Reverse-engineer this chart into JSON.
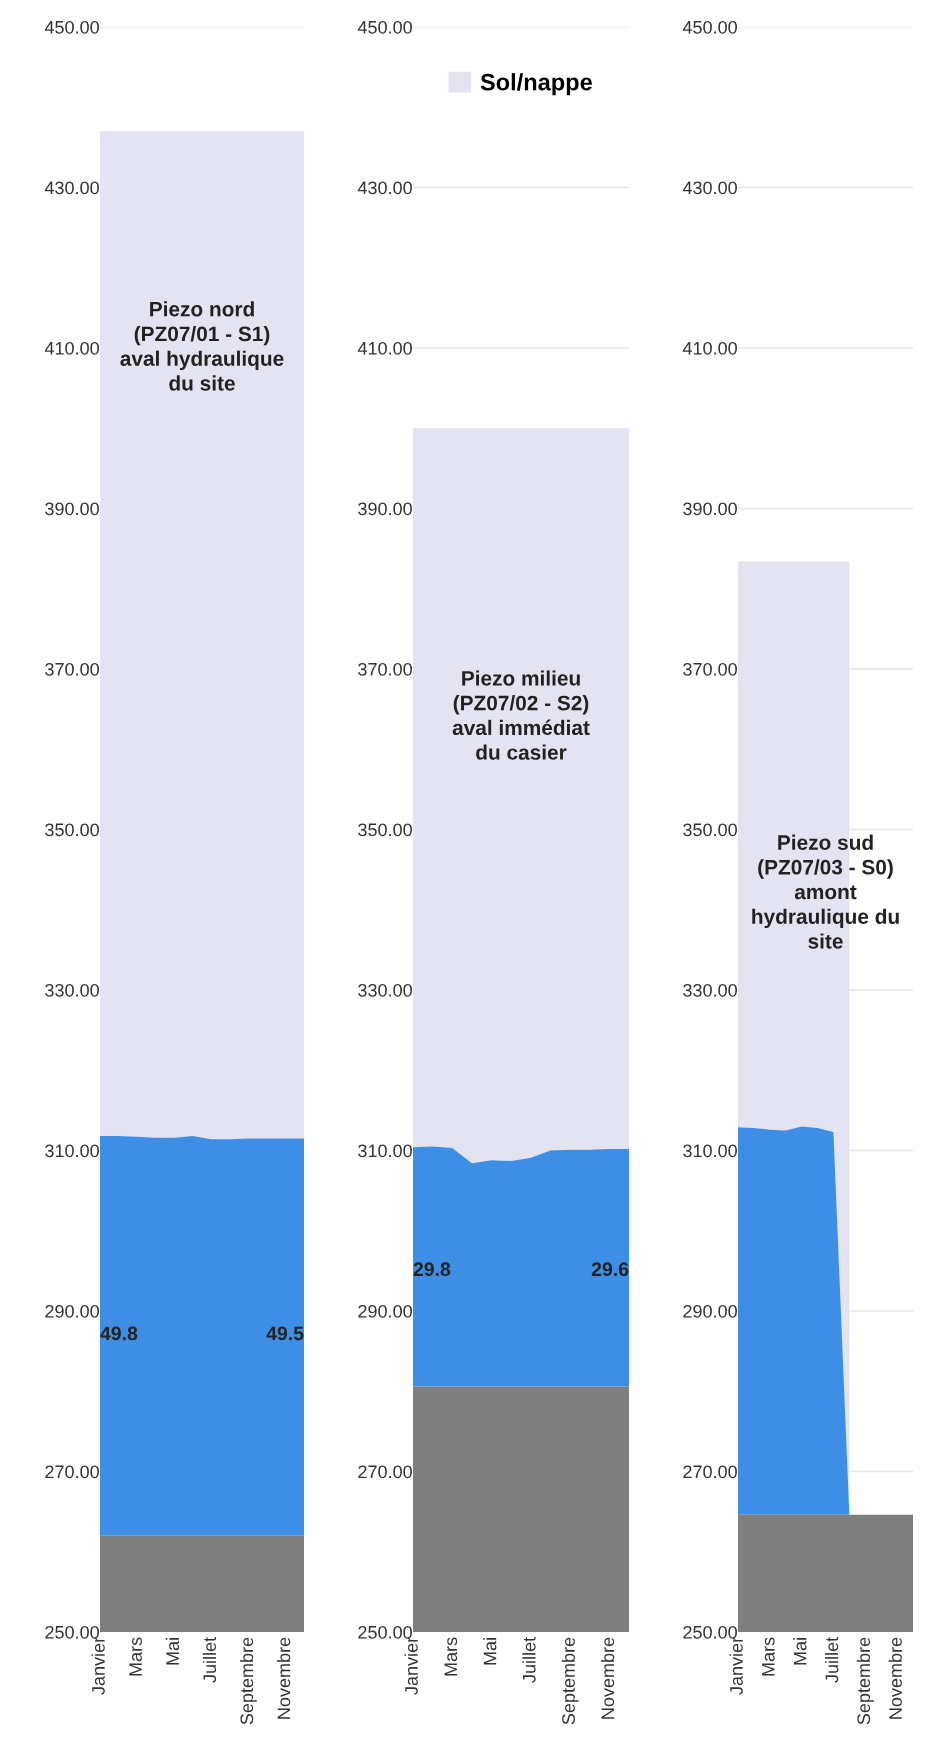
{
  "chart_data": [
    {
      "type": "area",
      "categories": [
        "Janvier",
        null,
        "Mars",
        null,
        "Mai",
        null,
        "Juillet",
        null,
        "Septembre",
        null,
        "Novembre",
        null
      ],
      "series": [
        {
          "color": "#7f7f7f",
          "values": [
            262,
            262,
            262,
            262,
            262,
            262,
            262,
            262,
            262,
            262,
            262,
            262
          ]
        },
        {
          "color": "#3d8ee4",
          "values": [
            311.8,
            311.8,
            311.7,
            311.6,
            311.6,
            311.8,
            311.4,
            311.4,
            311.5,
            311.5,
            311.5,
            311.5
          ]
        },
        {
          "color": "#e4e3f1",
          "values": [
            437,
            437,
            437,
            437,
            437,
            437,
            437,
            437,
            437,
            437,
            437,
            437
          ]
        }
      ],
      "ylim": [
        250,
        450
      ],
      "yticks": [
        {
          "value": 250,
          "label": "250.00"
        },
        {
          "value": 270,
          "label": "270.00"
        },
        {
          "value": 290,
          "label": "290.00"
        },
        {
          "value": 310,
          "label": "310.00"
        },
        {
          "value": 330,
          "label": "330.00"
        },
        {
          "value": 350,
          "label": "350.00"
        },
        {
          "value": 370,
          "label": "370.00"
        },
        {
          "value": 390,
          "label": "390.00"
        },
        {
          "value": 410,
          "label": "410.00"
        },
        {
          "value": 430,
          "label": "430.00"
        },
        {
          "value": 450,
          "label": "450.00"
        }
      ],
      "grid": "y",
      "legend": false,
      "annotations": [
        "Piezo nord\n(PZ07/01 - S1)\naval hydraulique\ndu site",
        "49.8",
        "49.5"
      ]
    },
    {
      "type": "area",
      "categories": [
        "Janvier",
        null,
        "Mars",
        null,
        "Mai",
        null,
        "Juillet",
        null,
        "Septembre",
        null,
        "Novembre",
        null
      ],
      "series": [
        {
          "color": "#7f7f7f",
          "values": [
            280.6,
            280.6,
            280.6,
            280.6,
            280.6,
            280.6,
            280.6,
            280.6,
            280.6,
            280.6,
            280.6,
            280.6
          ]
        },
        {
          "color": "#3d8ee4",
          "values": [
            310.4,
            310.5,
            310.3,
            308.4,
            308.8,
            308.7,
            309.1,
            310.0,
            310.1,
            310.1,
            310.2,
            310.2
          ]
        },
        {
          "name": "Sol/nappe",
          "color": "#e4e3f1",
          "values": [
            400,
            400,
            400,
            400,
            400,
            400,
            400,
            400,
            400,
            400,
            400,
            400
          ]
        }
      ],
      "ylim": [
        250,
        450
      ],
      "yticks": [
        {
          "value": 250,
          "label": "250.00"
        },
        {
          "value": 270,
          "label": "270.00"
        },
        {
          "value": 290,
          "label": "290.00"
        },
        {
          "value": 310,
          "label": "310.00"
        },
        {
          "value": 330,
          "label": "330.00"
        },
        {
          "value": 350,
          "label": "350.00"
        },
        {
          "value": 370,
          "label": "370.00"
        },
        {
          "value": 390,
          "label": "390.00"
        },
        {
          "value": 410,
          "label": "410.00"
        },
        {
          "value": 430,
          "label": "430.00"
        },
        {
          "value": 450,
          "label": "450.00"
        }
      ],
      "grid": "y",
      "legend": "top",
      "annotations": [
        "Piezo milieu\n(PZ07/02 - S2)\naval immédiat\ndu casier",
        "29.8",
        "29.6"
      ]
    },
    {
      "type": "area",
      "categories": [
        "Janvier",
        null,
        "Mars",
        null,
        "Mai",
        null,
        "Juillet",
        null,
        "Septembre",
        null,
        "Novembre",
        null
      ],
      "series": [
        {
          "color": "#7f7f7f",
          "values": [
            264.6,
            264.6,
            264.6,
            264.6,
            264.6,
            264.6,
            264.6,
            264.6,
            264.6,
            264.6,
            264.6,
            264.6
          ]
        },
        {
          "color": "#3d8ee4",
          "values": [
            312.9,
            312.8,
            312.6,
            312.5,
            313.0,
            312.8,
            312.3,
            264.6,
            null,
            null,
            null,
            null
          ]
        },
        {
          "color": "#e4e3f1",
          "values": [
            383.4,
            383.4,
            383.4,
            383.4,
            383.4,
            383.4,
            383.4,
            383.4,
            null,
            null,
            null,
            null
          ]
        }
      ],
      "ylim": [
        250,
        450
      ],
      "yticks": [
        {
          "value": 250,
          "label": "250.00"
        },
        {
          "value": 270,
          "label": "270.00"
        },
        {
          "value": 290,
          "label": "290.00"
        },
        {
          "value": 310,
          "label": "310.00"
        },
        {
          "value": 330,
          "label": "330.00"
        },
        {
          "value": 350,
          "label": "350.00"
        },
        {
          "value": 370,
          "label": "370.00"
        },
        {
          "value": 390,
          "label": "390.00"
        },
        {
          "value": 410,
          "label": "410.00"
        },
        {
          "value": 430,
          "label": "430.00"
        },
        {
          "value": 450,
          "label": "450.00"
        }
      ],
      "grid": "y",
      "legend": false,
      "annotations": [
        "Piezo sud\n(PZ07/03 - S0)\namont\nhydraulique du\nsite"
      ]
    }
  ]
}
